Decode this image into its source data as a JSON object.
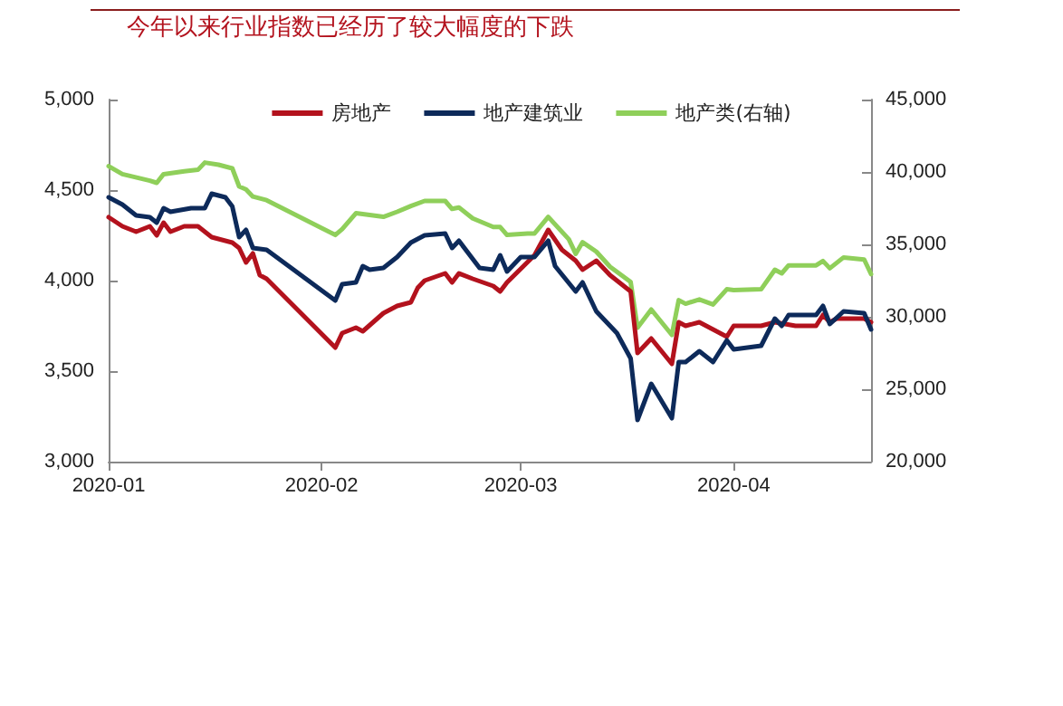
{
  "chart_data": {
    "type": "line",
    "title": "今年以来行业指数已经历了较大幅度的下跌",
    "xlim": [
      "2020-01-01",
      "2020-04-21"
    ],
    "xticks": [
      {
        "value": "2020-01-01",
        "label": "2020-01"
      },
      {
        "value": "2020-02-01",
        "label": "2020-02"
      },
      {
        "value": "2020-03-01",
        "label": "2020-03"
      },
      {
        "value": "2020-04-01",
        "label": "2020-04"
      }
    ],
    "ylim": [
      3000,
      5000
    ],
    "yticks": [
      {
        "value": 3000,
        "label": "3,000"
      },
      {
        "value": 3500,
        "label": "3,500"
      },
      {
        "value": 4000,
        "label": "4,000"
      },
      {
        "value": 4500,
        "label": "4,500"
      },
      {
        "value": 5000,
        "label": "5,000"
      }
    ],
    "y2lim": [
      20000,
      45000
    ],
    "y2ticks": [
      {
        "value": 20000,
        "label": "20,000"
      },
      {
        "value": 25000,
        "label": "25,000"
      },
      {
        "value": 30000,
        "label": "30,000"
      },
      {
        "value": 35000,
        "label": "35,000"
      },
      {
        "value": 40000,
        "label": "40,000"
      },
      {
        "value": 45000,
        "label": "45,000"
      }
    ],
    "grid": false,
    "legend": "top",
    "marker": "none",
    "line_style": "solid",
    "series": [
      {
        "name": "房地产",
        "color": "#b3121d",
        "x": [
          "2020-01-01",
          "2020-01-03",
          "2020-01-05",
          "2020-01-07",
          "2020-01-08",
          "2020-01-09",
          "2020-01-10",
          "2020-01-12",
          "2020-01-14",
          "2020-01-16",
          "2020-01-19",
          "2020-01-20",
          "2020-01-21",
          "2020-01-22",
          "2020-01-23",
          "2020-01-24",
          "2020-02-03",
          "2020-02-04",
          "2020-02-06",
          "2020-02-07",
          "2020-02-10",
          "2020-02-12",
          "2020-02-14",
          "2020-02-15",
          "2020-02-16",
          "2020-02-19",
          "2020-02-20",
          "2020-02-21",
          "2020-02-23",
          "2020-02-26",
          "2020-02-27",
          "2020-02-28",
          "2020-03-03",
          "2020-03-05",
          "2020-03-07",
          "2020-03-09",
          "2020-03-10",
          "2020-03-12",
          "2020-03-14",
          "2020-03-17",
          "2020-03-18",
          "2020-03-20",
          "2020-03-23",
          "2020-03-24",
          "2020-03-25",
          "2020-03-27",
          "2020-03-31",
          "2020-04-01",
          "2020-04-05",
          "2020-04-07",
          "2020-04-10",
          "2020-04-13",
          "2020-04-14",
          "2020-04-15",
          "2020-04-16",
          "2020-04-20",
          "2020-04-21"
        ],
        "values": [
          4350,
          4300,
          4270,
          4300,
          4250,
          4320,
          4270,
          4300,
          4300,
          4240,
          4210,
          4180,
          4100,
          4150,
          4030,
          4010,
          3630,
          3710,
          3740,
          3720,
          3820,
          3860,
          3880,
          3960,
          4000,
          4040,
          3990,
          4040,
          4010,
          3970,
          3940,
          3990,
          4140,
          4280,
          4170,
          4110,
          4060,
          4110,
          4030,
          3940,
          3600,
          3680,
          3540,
          3770,
          3750,
          3770,
          3690,
          3750,
          3750,
          3770,
          3750,
          3750,
          3810,
          3770,
          3790,
          3790,
          3770
        ]
      },
      {
        "name": "地产建筑业",
        "color": "#0d2a5a",
        "x": [
          "2020-01-01",
          "2020-01-03",
          "2020-01-05",
          "2020-01-07",
          "2020-01-08",
          "2020-01-09",
          "2020-01-10",
          "2020-01-13",
          "2020-01-15",
          "2020-01-16",
          "2020-01-18",
          "2020-01-19",
          "2020-01-20",
          "2020-01-21",
          "2020-01-22",
          "2020-01-24",
          "2020-02-03",
          "2020-02-04",
          "2020-02-06",
          "2020-02-07",
          "2020-02-08",
          "2020-02-10",
          "2020-02-12",
          "2020-02-14",
          "2020-02-16",
          "2020-02-19",
          "2020-02-20",
          "2020-02-21",
          "2020-02-24",
          "2020-02-26",
          "2020-02-27",
          "2020-02-28",
          "2020-03-01",
          "2020-03-03",
          "2020-03-05",
          "2020-03-06",
          "2020-03-09",
          "2020-03-10",
          "2020-03-12",
          "2020-03-15",
          "2020-03-17",
          "2020-03-18",
          "2020-03-20",
          "2020-03-23",
          "2020-03-24",
          "2020-03-25",
          "2020-03-27",
          "2020-03-29",
          "2020-03-31",
          "2020-04-01",
          "2020-04-05",
          "2020-04-07",
          "2020-04-08",
          "2020-04-09",
          "2020-04-13",
          "2020-04-14",
          "2020-04-15",
          "2020-04-17",
          "2020-04-20",
          "2020-04-21"
        ],
        "values": [
          4460,
          4420,
          4360,
          4350,
          4320,
          4400,
          4380,
          4400,
          4400,
          4480,
          4460,
          4410,
          4240,
          4280,
          4180,
          4170,
          3890,
          3980,
          3990,
          4080,
          4060,
          4070,
          4130,
          4210,
          4250,
          4260,
          4180,
          4220,
          4070,
          4060,
          4140,
          4050,
          4130,
          4130,
          4220,
          4080,
          3940,
          3990,
          3830,
          3710,
          3570,
          3230,
          3430,
          3240,
          3550,
          3550,
          3610,
          3550,
          3670,
          3620,
          3640,
          3790,
          3750,
          3810,
          3810,
          3860,
          3760,
          3830,
          3820,
          3730
        ]
      },
      {
        "name": "地产类(右轴)",
        "color": "#8fcf5a",
        "axis": "y2",
        "x": [
          "2020-01-01",
          "2020-01-03",
          "2020-01-07",
          "2020-01-08",
          "2020-01-09",
          "2020-01-12",
          "2020-01-14",
          "2020-01-15",
          "2020-01-17",
          "2020-01-19",
          "2020-01-20",
          "2020-01-21",
          "2020-01-22",
          "2020-01-24",
          "2020-02-03",
          "2020-02-04",
          "2020-02-06",
          "2020-02-10",
          "2020-02-12",
          "2020-02-14",
          "2020-02-16",
          "2020-02-19",
          "2020-02-20",
          "2020-02-21",
          "2020-02-23",
          "2020-02-26",
          "2020-02-27",
          "2020-02-28",
          "2020-03-02",
          "2020-03-03",
          "2020-03-05",
          "2020-03-08",
          "2020-03-09",
          "2020-03-10",
          "2020-03-12",
          "2020-03-14",
          "2020-03-17",
          "2020-03-18",
          "2020-03-20",
          "2020-03-23",
          "2020-03-24",
          "2020-03-25",
          "2020-03-27",
          "2020-03-29",
          "2020-03-31",
          "2020-04-01",
          "2020-04-05",
          "2020-04-07",
          "2020-04-08",
          "2020-04-09",
          "2020-04-13",
          "2020-04-14",
          "2020-04-15",
          "2020-04-17",
          "2020-04-20",
          "2020-04-21"
        ],
        "values": [
          40400,
          39850,
          39400,
          39250,
          39850,
          40050,
          40150,
          40650,
          40500,
          40250,
          39000,
          38800,
          38300,
          38050,
          35650,
          36050,
          37150,
          36900,
          37250,
          37650,
          38000,
          38000,
          37450,
          37550,
          36800,
          36200,
          36200,
          35650,
          35750,
          35750,
          36900,
          35350,
          34350,
          35150,
          34500,
          33450,
          32400,
          29250,
          30500,
          28750,
          31150,
          30900,
          31200,
          30850,
          31900,
          31850,
          31900,
          33250,
          33000,
          33550,
          33550,
          33850,
          33350,
          34100,
          33950,
          32950
        ]
      }
    ]
  }
}
